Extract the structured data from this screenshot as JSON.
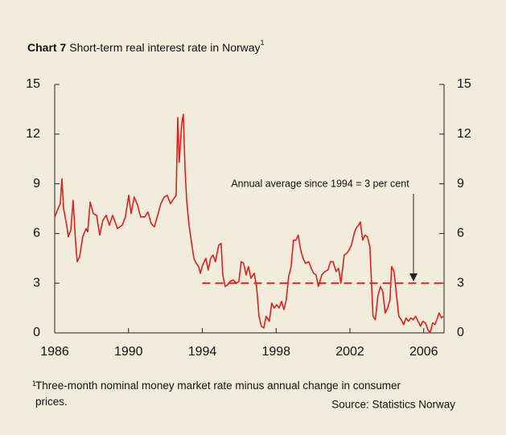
{
  "chart_data": {
    "type": "line",
    "title_label": "Chart 7",
    "title": "Short-term real interest rate in Norway",
    "footnote_marker": "1",
    "footnote": "Three-month nominal money market rate minus annual change in consumer prices.",
    "source": "Source: Statistics Norway",
    "annotation": "Annual average since 1994 = 3 per cent",
    "reference": {
      "value": 3,
      "x_start": 1994,
      "color": "#e0201b"
    },
    "xlim": [
      1986,
      2007.1
    ],
    "xticks": [
      1986,
      1990,
      1994,
      1998,
      2002,
      2006
    ],
    "ylim": [
      0,
      15
    ],
    "yticks": [
      0,
      3,
      6,
      9,
      12,
      15
    ],
    "y2lim": [
      0,
      15
    ],
    "y2ticks": [
      0,
      3,
      6,
      9,
      12,
      15
    ],
    "series": [
      {
        "color": "#e0201b",
        "x": [
          1986.0,
          1986.22,
          1986.3,
          1986.39,
          1986.48,
          1986.65,
          1986.74,
          1986.87,
          1987.0,
          1987.13,
          1987.22,
          1987.35,
          1987.52,
          1987.7,
          1987.79,
          1987.92,
          1988.09,
          1988.27,
          1988.44,
          1988.61,
          1988.79,
          1988.96,
          1989.14,
          1989.4,
          1989.66,
          1989.83,
          1990.01,
          1990.14,
          1990.31,
          1990.49,
          1990.66,
          1990.88,
          1991.05,
          1991.23,
          1991.4,
          1991.58,
          1991.75,
          1991.93,
          1992.1,
          1992.27,
          1992.45,
          1992.58,
          1992.67,
          1992.75,
          1992.88,
          1992.97,
          1993.06,
          1993.15,
          1993.28,
          1993.41,
          1993.54,
          1993.67,
          1993.8,
          1993.89,
          1994.02,
          1994.19,
          1994.32,
          1994.45,
          1994.58,
          1994.71,
          1994.89,
          1995.02,
          1995.11,
          1995.24,
          1995.37,
          1995.5,
          1995.67,
          1995.85,
          1995.98,
          1996.11,
          1996.24,
          1996.37,
          1996.5,
          1996.63,
          1996.81,
          1996.94,
          1997.07,
          1997.2,
          1997.33,
          1997.46,
          1997.63,
          1997.76,
          1997.89,
          1998.03,
          1998.16,
          1998.29,
          1998.42,
          1998.55,
          1998.68,
          1998.81,
          1998.94,
          1999.07,
          1999.2,
          1999.33,
          1999.46,
          1999.59,
          1999.77,
          1999.9,
          2000.03,
          2000.16,
          2000.29,
          2000.47,
          2000.64,
          2000.81,
          2000.94,
          2001.08,
          2001.25,
          2001.38,
          2001.51,
          2001.69,
          2001.82,
          2001.95,
          2002.08,
          2002.25,
          2002.38,
          2002.47,
          2002.56,
          2002.69,
          2002.82,
          2002.95,
          2003.08,
          2003.17,
          2003.25,
          2003.38,
          2003.51,
          2003.65,
          2003.78,
          2003.91,
          2004.04,
          2004.17,
          2004.26,
          2004.39,
          2004.52,
          2004.65,
          2004.78,
          2004.91,
          2005.04,
          2005.17,
          2005.3,
          2005.43,
          2005.56,
          2005.69,
          2005.82,
          2005.95,
          2006.09,
          2006.22,
          2006.35,
          2006.48,
          2006.61,
          2006.74,
          2006.83,
          2006.96,
          2007.05
        ],
        "values": [
          7.0,
          7.6,
          7.8,
          9.3,
          7.5,
          6.5,
          5.8,
          6.2,
          8.0,
          5.5,
          4.3,
          4.6,
          5.8,
          6.3,
          6.1,
          7.9,
          7.2,
          7.1,
          5.9,
          6.8,
          7.1,
          6.5,
          7.1,
          6.3,
          6.5,
          7.0,
          8.3,
          7.2,
          8.2,
          7.7,
          7.0,
          7.0,
          7.3,
          6.6,
          6.4,
          7.1,
          7.8,
          8.2,
          8.3,
          7.8,
          8.1,
          8.3,
          13.0,
          10.3,
          12.6,
          13.2,
          10.0,
          8.0,
          6.5,
          5.5,
          4.5,
          4.2,
          4.0,
          3.6,
          4.1,
          4.5,
          3.8,
          4.5,
          4.7,
          4.3,
          5.3,
          5.4,
          3.5,
          2.8,
          2.9,
          3.1,
          3.2,
          3.0,
          3.1,
          4.3,
          4.2,
          3.5,
          4.0,
          3.3,
          3.6,
          2.8,
          1.0,
          0.4,
          0.3,
          1.0,
          0.7,
          1.8,
          1.5,
          1.7,
          1.5,
          1.9,
          1.4,
          2.0,
          3.4,
          4.0,
          5.6,
          5.6,
          5.9,
          5.0,
          4.5,
          4.2,
          4.3,
          3.9,
          3.6,
          3.5,
          2.8,
          3.5,
          3.7,
          3.8,
          4.3,
          4.3,
          3.7,
          3.9,
          3.0,
          4.7,
          4.8,
          5.0,
          5.3,
          6.1,
          6.4,
          6.5,
          6.7,
          5.6,
          5.9,
          5.8,
          5.2,
          3.0,
          1.0,
          0.8,
          2.2,
          2.8,
          2.5,
          1.2,
          1.5,
          2.0,
          4.0,
          3.7,
          2.3,
          1.0,
          0.8,
          0.5,
          0.9,
          0.7,
          0.9,
          0.8,
          1.0,
          0.7,
          0.4,
          0.7,
          0.6,
          0.2,
          0.0,
          0.6,
          0.5,
          0.9,
          1.2,
          0.9,
          1.0
        ]
      }
    ]
  }
}
